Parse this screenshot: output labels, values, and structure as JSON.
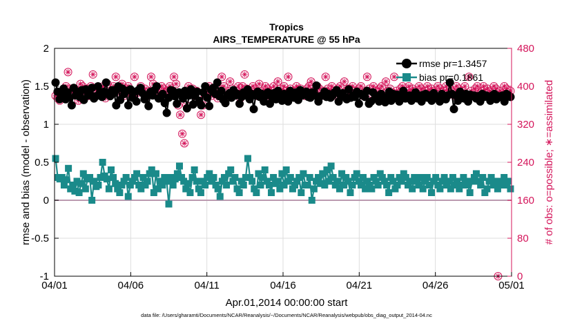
{
  "chart_data": {
    "type": "line",
    "title": "Tropics",
    "subtitle": "AIRS_TEMPERATURE @ 55 hPa",
    "xlabel": "Apr.01,2014 00:00:00 start",
    "ylabel_left": "rmse and bias (model - observation)",
    "ylabel_right": "# of obs: o=possible; ∗=assimilated",
    "footnote": "data file: /Users/gharamti/Documents/NCAR/Reanalysis/~/Documents/NCAR/Reanalysis/webpub/obs_diag_output_2014-04.nc",
    "x_ticks": [
      "04/01",
      "04/06",
      "04/11",
      "04/16",
      "04/21",
      "04/26",
      "05/01"
    ],
    "x_range_days": [
      0,
      30
    ],
    "ylim_left": [
      -1,
      2
    ],
    "y_ticks_left": [
      "-1",
      "-0.5",
      "0",
      "0.5",
      "1",
      "1.5",
      "2"
    ],
    "ylim_right": [
      0,
      480
    ],
    "y_ticks_right": [
      "0",
      "80",
      "160",
      "240",
      "320",
      "400",
      "480"
    ],
    "grid": true,
    "legend_position": "top-right",
    "colors": {
      "rmse": "#000000",
      "bias": "#1a8a8a",
      "obs": "#d4145a",
      "zero_line": "#bb9ab0",
      "grid": "#dddddd"
    },
    "series": [
      {
        "name": "rmse",
        "legend": "rmse pr=1.3457",
        "values": [
          1.55,
          1.43,
          1.33,
          1.38,
          1.47,
          1.33,
          1.42,
          1.35,
          1.25,
          1.48,
          1.38,
          1.43,
          1.36,
          1.45,
          1.32,
          1.46,
          1.38,
          1.4,
          1.48,
          1.34,
          1.37,
          1.5,
          1.42,
          1.36,
          1.43,
          1.55,
          1.4,
          1.37,
          1.45,
          1.41,
          1.25,
          1.5,
          1.32,
          1.47,
          1.4,
          1.44,
          1.25,
          1.46,
          1.35,
          1.43,
          1.3,
          1.45,
          1.48,
          1.41,
          1.33,
          1.38,
          1.24,
          1.43,
          1.38,
          1.45,
          1.5,
          1.34,
          1.36,
          1.4,
          1.28,
          1.15,
          1.35,
          1.45,
          1.44,
          1.37,
          1.27,
          1.42,
          1.4,
          1.34,
          1.44,
          1.21,
          1.38,
          1.46,
          1.26,
          1.38,
          1.43,
          1.31,
          1.25,
          1.42,
          1.5,
          1.35,
          1.24,
          1.45,
          1.48,
          1.4,
          1.55,
          1.37,
          1.44,
          1.32,
          1.28,
          1.38,
          1.41,
          1.35,
          1.45,
          1.38,
          1.4,
          1.27,
          1.36,
          1.42,
          1.38,
          1.46,
          1.33,
          1.4,
          1.2,
          1.38,
          1.43,
          1.36,
          1.4,
          1.3,
          1.38,
          1.42,
          1.27,
          1.36,
          1.41,
          1.33,
          1.44,
          1.35,
          1.31,
          1.4,
          1.37,
          1.3,
          1.44,
          1.37,
          1.35,
          1.42,
          1.32,
          1.45,
          1.38,
          1.4,
          1.43,
          1.36,
          1.35,
          1.42,
          1.38,
          1.51,
          1.3,
          1.37,
          1.38,
          1.43,
          1.36,
          1.4,
          1.35,
          1.38,
          1.42,
          1.45,
          1.3,
          1.38,
          1.41,
          1.36,
          1.33,
          1.46,
          1.35,
          1.38,
          1.36,
          1.43,
          1.27,
          1.4,
          1.38,
          1.36,
          1.44,
          1.27,
          1.3,
          1.42,
          1.34,
          1.37,
          1.3,
          1.4,
          1.33,
          1.29,
          1.36,
          1.43,
          1.31,
          1.4,
          1.36,
          1.39,
          1.3,
          1.38,
          1.44,
          1.34,
          1.36,
          1.38,
          1.31,
          1.36,
          1.42,
          1.34,
          1.38,
          1.3,
          1.39,
          1.4,
          1.35,
          1.38,
          1.31,
          1.41,
          1.36,
          1.34,
          1.3,
          1.4,
          1.36,
          1.33,
          1.38,
          1.55,
          1.4,
          1.2,
          1.38,
          1.31,
          1.43,
          1.37,
          1.34,
          1.4,
          1.3,
          1.39,
          1.37,
          1.38,
          1.34,
          1.37,
          1.3,
          1.4,
          1.36,
          1.38,
          1.36,
          1.31,
          1.38,
          1.4,
          1.33,
          1.37,
          1.36,
          1.38,
          1.3,
          1.4,
          1.38,
          1.36
        ]
      },
      {
        "name": "bias",
        "legend": "bias pr=0.1861",
        "values": [
          0.55,
          0.3,
          0.28,
          0.3,
          0.2,
          0.27,
          0.42,
          0.15,
          0.2,
          0.12,
          0.25,
          0.1,
          0.22,
          0.35,
          0.15,
          0.28,
          0.3,
          0.0,
          0.25,
          0.18,
          0.2,
          0.3,
          0.5,
          0.32,
          0.28,
          0.15,
          0.4,
          0.3,
          0.22,
          0.15,
          0.1,
          0.2,
          0.25,
          0.3,
          0.05,
          0.2,
          0.25,
          0.3,
          0.35,
          0.2,
          0.15,
          0.3,
          0.2,
          0.25,
          0.35,
          0.4,
          0.1,
          0.35,
          0.15,
          0.25,
          0.2,
          0.3,
          0.25,
          -0.05,
          0.3,
          0.2,
          0.28,
          0.35,
          0.45,
          0.3,
          0.25,
          0.15,
          0.22,
          0.1,
          0.3,
          0.4,
          0.25,
          0.15,
          0.1,
          0.25,
          0.2,
          0.3,
          0.35,
          0.25,
          0.3,
          0.2,
          0.15,
          0.05,
          0.25,
          0.3,
          0.2,
          0.35,
          0.4,
          0.25,
          0.3,
          0.15,
          0.1,
          0.25,
          0.2,
          0.3,
          0.55,
          0.3,
          0.25,
          0.15,
          0.1,
          0.35,
          0.2,
          0.3,
          0.4,
          0.25,
          0.2,
          0.1,
          0.3,
          0.22,
          0.25,
          0.15,
          0.35,
          0.2,
          0.4,
          0.25,
          0.3,
          0.15,
          0.2,
          0.25,
          0.3,
          0.1,
          0.35,
          0.2,
          0.2,
          0.3,
          0.0,
          0.15,
          0.25,
          0.3,
          0.22,
          0.35,
          0.2,
          0.4,
          0.25,
          0.45,
          0.3,
          0.2,
          0.25,
          0.15,
          0.35,
          0.2,
          0.3,
          0.25,
          0.1,
          0.2,
          0.3,
          0.35,
          0.25,
          0.2,
          0.3,
          0.15,
          0.25,
          0.2,
          0.15,
          0.3,
          0.25,
          0.2,
          0.35,
          0.3,
          0.25,
          0.2,
          0.1,
          0.3,
          0.25,
          0.15,
          0.2,
          0.3,
          0.25,
          0.35,
          0.3,
          0.2,
          0.25,
          0.15,
          0.3,
          0.25,
          0.2,
          0.3,
          0.15,
          0.25,
          0.3,
          0.2,
          0.1,
          0.25,
          0.3,
          0.2,
          0.15,
          0.25,
          0.3,
          0.2,
          0.25,
          0.15,
          0.3,
          0.2,
          0.25,
          0.15,
          0.2,
          0.3,
          0.25,
          0.2,
          0.1,
          0.25,
          0.3,
          0.35,
          0.25,
          0.2,
          0.3,
          0.1,
          0.15,
          0.25,
          0.3,
          0.2,
          0.25,
          0.15,
          0.2,
          0.25,
          0.3,
          0.2,
          0.25,
          0.15
        ]
      },
      {
        "name": "obs_count",
        "axis": "right",
        "markers": "circle+asterisk",
        "values": [
          380,
          375,
          370,
          385,
          395,
          400,
          430,
          395,
          390,
          385,
          390,
          370,
          405,
          400,
          385,
          395,
          380,
          400,
          425,
          385,
          390,
          395,
          380,
          400,
          375,
          405,
          385,
          390,
          400,
          420,
          395,
          385,
          405,
          380,
          395,
          400,
          390,
          380,
          420,
          385,
          390,
          400,
          385,
          395,
          380,
          390,
          420,
          405,
          390,
          395,
          380,
          400,
          395,
          385,
          390,
          400,
          385,
          420,
          405,
          360,
          340,
          300,
          280,
          360,
          400,
          385,
          395,
          380,
          390,
          385,
          340,
          360,
          380,
          390,
          400,
          380,
          390,
          385,
          375,
          395,
          420,
          400,
          380,
          390,
          410,
          395,
          385,
          390,
          400,
          375,
          400,
          425,
          395,
          390,
          385,
          400,
          395,
          380,
          405,
          390,
          385,
          400,
          395,
          380,
          390,
          400,
          385,
          410,
          395,
          385,
          400,
          390,
          420,
          395,
          380,
          390,
          400,
          385,
          395,
          390,
          380,
          395,
          400,
          410,
          390,
          385,
          400,
          395,
          380,
          390,
          420,
          395,
          385,
          400,
          390,
          380,
          395,
          400,
          385,
          410,
          390,
          395,
          380,
          400,
          390,
          385,
          395,
          400,
          380,
          390,
          420,
          395,
          385,
          400,
          390,
          380,
          395,
          400,
          385,
          410,
          390,
          395,
          380,
          420,
          390,
          385,
          395,
          400,
          380,
          390,
          400,
          385,
          395,
          390,
          380,
          400,
          395,
          385,
          390,
          400,
          380,
          395,
          390,
          385,
          400,
          395,
          380,
          390,
          400,
          385,
          395,
          390,
          380,
          400,
          395,
          385,
          390,
          400,
          380,
          420,
          390,
          385,
          395,
          400,
          380,
          390,
          400,
          385,
          395,
          390,
          380,
          400,
          395,
          0,
          390,
          385,
          400,
          395,
          380,
          390
        ]
      }
    ]
  }
}
